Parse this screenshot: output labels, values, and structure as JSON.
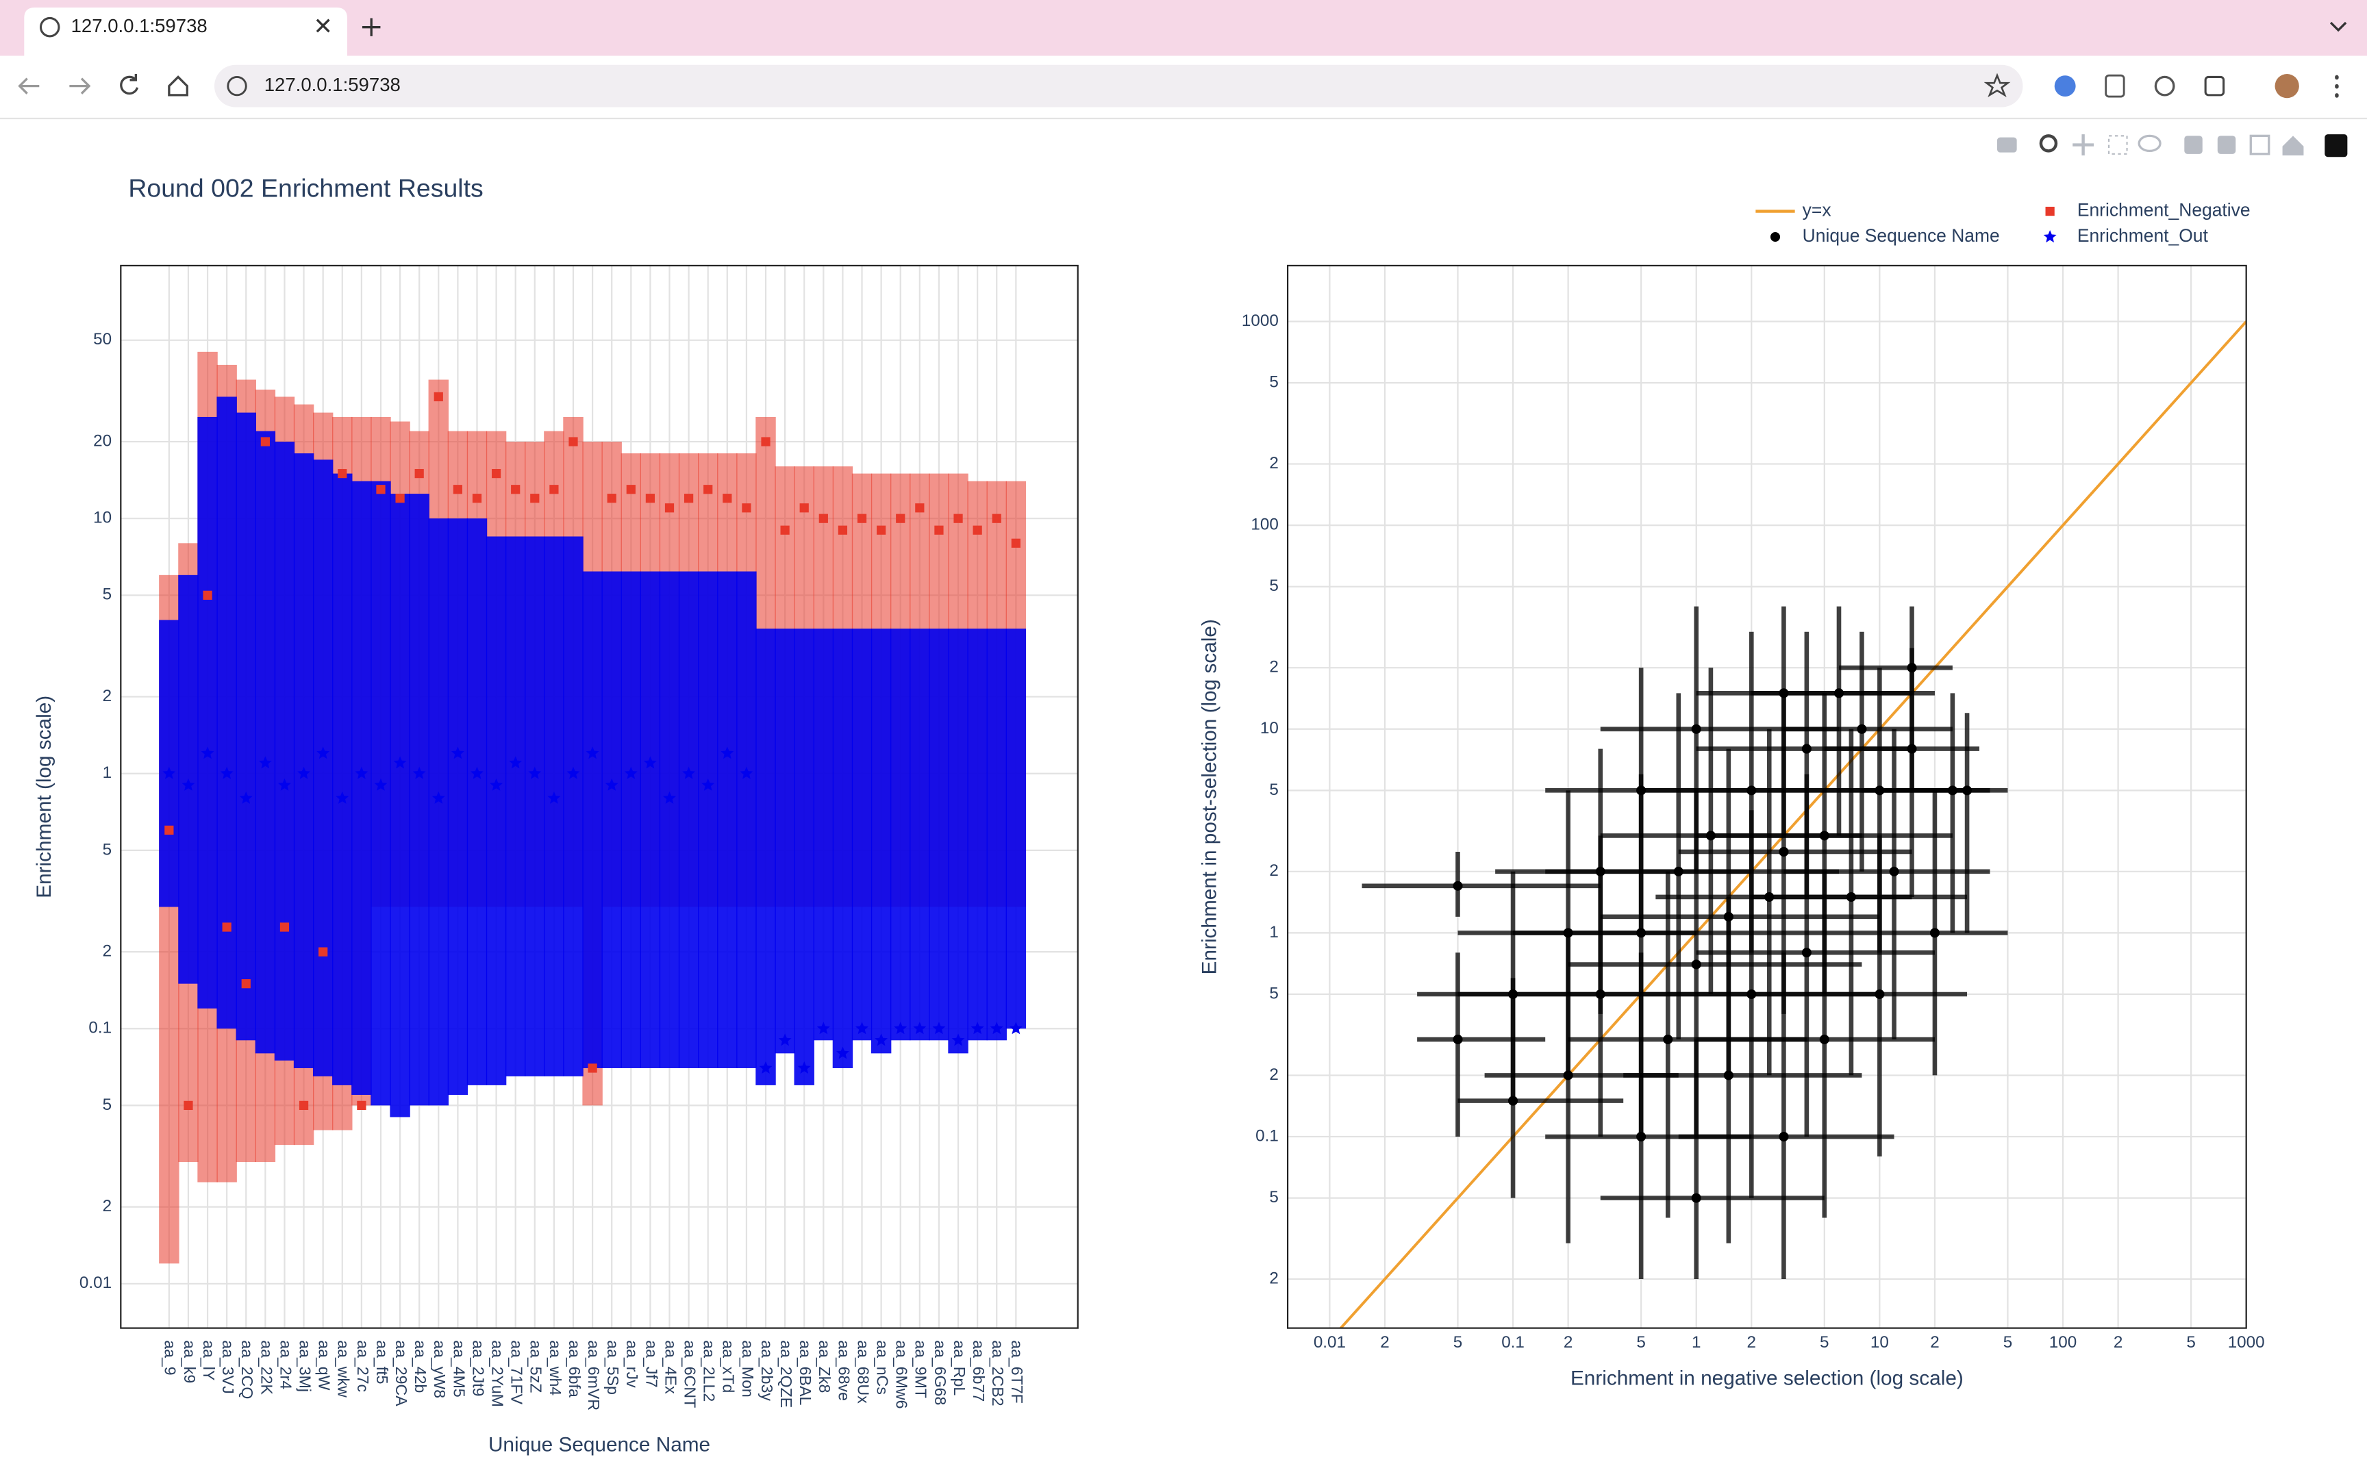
{
  "browser": {
    "tab_title": "127.0.0.1:59738",
    "url": "127.0.0.1:59738"
  },
  "chart_data": [
    {
      "type": "scatter",
      "title": "Round 002 Enrichment Results",
      "x_label": "Unique Sequence Name",
      "y_label": "Enrichment (log scale)",
      "categories": [
        "aa_9",
        "aa_k9",
        "aa_lY",
        "aa_3VJ",
        "aa_2CQ",
        "aa_22K",
        "aa_2r4",
        "aa_3Mj",
        "aa_qW",
        "aa_wkw",
        "aa_27c",
        "aa_ft5",
        "aa_29CA",
        "aa_42b",
        "aa_yW8",
        "aa_4M5",
        "aa_2Jt9",
        "aa_2YuM",
        "aa_71FV",
        "aa_5zZ",
        "aa_wh4",
        "aa_6bfa",
        "aa_6mVR",
        "aa_5Sp",
        "aa_rJv",
        "aa_Jf7",
        "aa_4Ex",
        "aa_6CNT",
        "aa_2LL2",
        "aa_xTd",
        "aa_Mon",
        "aa_2b3y",
        "aa_2QZE",
        "aa_6BAL",
        "aa_Zk8",
        "aa_68ve",
        "aa_68Ux",
        "aa_nCs",
        "aa_6Mw6",
        "aa_9MT",
        "aa_6G68",
        "aa_RpL",
        "aa_6b77",
        "aa_2CB2",
        "aa_6T7F"
      ],
      "ylog": true,
      "ylim": [
        0.0067,
        98
      ],
      "grid": true,
      "yticks": [
        0.01,
        {
          "value": 0.02,
          "label": "2"
        },
        {
          "value": 0.05,
          "label": "5"
        },
        0.1,
        {
          "value": 0.2,
          "label": "2"
        },
        {
          "value": 0.5,
          "label": "5"
        },
        1,
        2,
        5,
        10,
        20,
        50
      ],
      "series": [
        {
          "name": "Enrichment_Negative",
          "color": "#e8392a",
          "marker": "square",
          "values": [
            0.6,
            0.05,
            5,
            0.25,
            0.15,
            20,
            0.25,
            0.05,
            0.2,
            15,
            0.05,
            13,
            12,
            15,
            30,
            13,
            12,
            15,
            13,
            12,
            13,
            20,
            0.07,
            12,
            13,
            12,
            11,
            12,
            13,
            12,
            11,
            20,
            9,
            11,
            10,
            9,
            10,
            9,
            10,
            11,
            9,
            10,
            9,
            10,
            8
          ],
          "lower": [
            0.012,
            0.03,
            0.025,
            0.025,
            0.03,
            0.03,
            0.035,
            0.035,
            0.04,
            0.04,
            0.05,
            0.3,
            0.3,
            0.3,
            0.3,
            0.3,
            0.3,
            0.3,
            0.3,
            0.3,
            0.3,
            0.3,
            0.05,
            0.3,
            0.3,
            0.3,
            0.3,
            0.3,
            0.3,
            0.3,
            0.3,
            0.3,
            0.3,
            0.3,
            0.3,
            0.3,
            0.3,
            0.3,
            0.3,
            0.3,
            0.3,
            0.3,
            0.3,
            0.3,
            0.3
          ],
          "upper": [
            6,
            8,
            45,
            40,
            35,
            32,
            30,
            28,
            26,
            25,
            25,
            25,
            24,
            22,
            35,
            22,
            22,
            22,
            20,
            20,
            22,
            25,
            20,
            20,
            18,
            18,
            18,
            18,
            18,
            18,
            18,
            25,
            16,
            16,
            16,
            16,
            15,
            15,
            15,
            15,
            15,
            15,
            14,
            14,
            14
          ]
        },
        {
          "name": "Enrichment_Out",
          "color": "#0000ee",
          "marker": "star",
          "values": [
            1,
            0.9,
            1.2,
            1,
            0.8,
            1.1,
            0.9,
            1,
            1.2,
            0.8,
            1,
            0.9,
            1.1,
            1,
            0.8,
            1.2,
            1,
            0.9,
            1.1,
            1,
            0.8,
            1,
            1.2,
            0.9,
            1,
            1.1,
            0.8,
            1,
            0.9,
            1.2,
            1,
            0.07,
            0.09,
            0.07,
            0.1,
            0.08,
            0.1,
            0.09,
            0.1,
            0.1,
            0.1,
            0.09,
            0.1,
            0.1,
            0.1
          ],
          "lower": [
            0.3,
            0.15,
            0.12,
            0.1,
            0.09,
            0.08,
            0.075,
            0.07,
            0.065,
            0.06,
            0.055,
            0.05,
            0.045,
            0.05,
            0.05,
            0.055,
            0.06,
            0.06,
            0.065,
            0.065,
            0.065,
            0.065,
            0.07,
            0.07,
            0.07,
            0.07,
            0.07,
            0.07,
            0.07,
            0.07,
            0.07,
            0.06,
            0.08,
            0.06,
            0.09,
            0.07,
            0.09,
            0.08,
            0.09,
            0.09,
            0.09,
            0.08,
            0.09,
            0.09,
            0.1
          ],
          "upper": [
            4,
            6,
            25,
            30,
            26,
            22,
            20,
            18,
            17,
            15,
            14,
            14,
            12.5,
            12.5,
            10,
            10,
            10,
            8.5,
            8.5,
            8.5,
            8.5,
            8.5,
            6.2,
            6.2,
            6.2,
            6.2,
            6.2,
            6.2,
            6.2,
            6.2,
            6.2,
            3.7,
            3.7,
            3.7,
            3.7,
            3.7,
            3.7,
            3.7,
            3.7,
            3.7,
            3.7,
            3.7,
            3.7,
            3.7,
            3.7
          ]
        }
      ]
    },
    {
      "type": "scatter",
      "x_label": "Enrichment in negative selection (log scale)",
      "y_label": "Enrichment in post-selection (log scale)",
      "xlog": true,
      "ylog": true,
      "xlim": [
        0.0059,
        1000
      ],
      "ylim": [
        0.0115,
        1880
      ],
      "grid": true,
      "legend": "upper right",
      "xticks": [
        0.01,
        {
          "value": 0.02,
          "label": "2"
        },
        {
          "value": 0.05,
          "label": "5"
        },
        0.1,
        {
          "value": 0.2,
          "label": "2"
        },
        {
          "value": 0.5,
          "label": "5"
        },
        1,
        {
          "value": 2,
          "label": "2"
        },
        {
          "value": 5,
          "label": "5"
        },
        10,
        {
          "value": 20,
          "label": "2"
        },
        {
          "value": 50,
          "label": "5"
        },
        100,
        {
          "value": 200,
          "label": "2"
        },
        {
          "value": 500,
          "label": "5"
        },
        1000
      ],
      "yticks": [
        {
          "value": 0.02,
          "label": "2"
        },
        {
          "value": 0.05,
          "label": "5"
        },
        0.1,
        {
          "value": 0.2,
          "label": "2"
        },
        {
          "value": 0.5,
          "label": "5"
        },
        1,
        2,
        5,
        10,
        {
          "value": 20,
          "label": "2"
        },
        {
          "value": 50,
          "label": "5"
        },
        100,
        {
          "value": 200,
          "label": "2"
        },
        {
          "value": 500,
          "label": "5"
        },
        1000
      ],
      "series": [
        {
          "name": "y=x",
          "color": "#f0a030",
          "mode": "lines",
          "x": [
            0.01,
            1000
          ],
          "values": [
            0.01,
            1000
          ]
        },
        {
          "name": "Unique Sequence Name",
          "color": "#000000",
          "marker": "circle",
          "x": [
            0.05,
            0.05,
            0.1,
            0.1,
            0.2,
            0.2,
            0.3,
            0.3,
            0.5,
            0.5,
            0.5,
            0.7,
            0.8,
            1,
            1,
            1,
            1.2,
            1.5,
            1.5,
            2,
            2,
            2.5,
            3,
            3,
            3,
            4,
            4,
            5,
            5,
            6,
            7,
            8,
            10,
            10,
            12,
            15,
            15,
            20,
            25,
            30
          ],
          "values": [
            1.7,
            0.3,
            0.15,
            0.5,
            1,
            0.2,
            0.5,
            2,
            0.1,
            1,
            5,
            0.3,
            2,
            0.05,
            0.7,
            10,
            3,
            0.2,
            1.2,
            0.5,
            5,
            1.5,
            0.1,
            15,
            2.5,
            0.8,
            8,
            0.3,
            3,
            15,
            1.5,
            10,
            0.5,
            5,
            2,
            20,
            8,
            1,
            5,
            5
          ],
          "x_lower": [
            0.015,
            0.03,
            0.05,
            0.03,
            0.05,
            0.07,
            0.05,
            0.08,
            0.15,
            0.1,
            0.15,
            0.2,
            0.15,
            0.3,
            0.2,
            0.3,
            0.3,
            0.4,
            0.3,
            0.5,
            0.5,
            0.6,
            0.8,
            1,
            0.8,
            1,
            1,
            1,
            1,
            2,
            2,
            3,
            2,
            3,
            3,
            6,
            5,
            5,
            8,
            10
          ],
          "x_upper": [
            0.3,
            0.15,
            0.4,
            0.5,
            1,
            0.8,
            2,
            2,
            2,
            5,
            3,
            4,
            6,
            5,
            8,
            6,
            8,
            8,
            10,
            10,
            12,
            15,
            12,
            15,
            15,
            20,
            15,
            20,
            25,
            20,
            30,
            25,
            30,
            30,
            40,
            25,
            35,
            50,
            40,
            50
          ],
          "y_lower": [
            1.2,
            0.1,
            0.05,
            0.15,
            0.2,
            0.03,
            0.1,
            0.4,
            0.02,
            0.1,
            1,
            0.04,
            0.3,
            0.02,
            0.1,
            2,
            0.5,
            0.03,
            0.2,
            0.05,
            0.8,
            0.2,
            0.02,
            3,
            0.4,
            0.1,
            1.5,
            0.04,
            0.5,
            3,
            0.2,
            2,
            0.08,
            0.8,
            0.3,
            5,
            1.5,
            0.2,
            1,
            1
          ],
          "y_upper": [
            2.5,
            0.8,
            0.6,
            2,
            5,
            1,
            3,
            8,
            0.8,
            6,
            20,
            2,
            15,
            0.3,
            5,
            40,
            20,
            1.5,
            8,
            4,
            30,
            10,
            0.8,
            40,
            15,
            6,
            30,
            2,
            15,
            40,
            10,
            30,
            3,
            20,
            10,
            40,
            25,
            5,
            15,
            12
          ]
        }
      ]
    }
  ]
}
